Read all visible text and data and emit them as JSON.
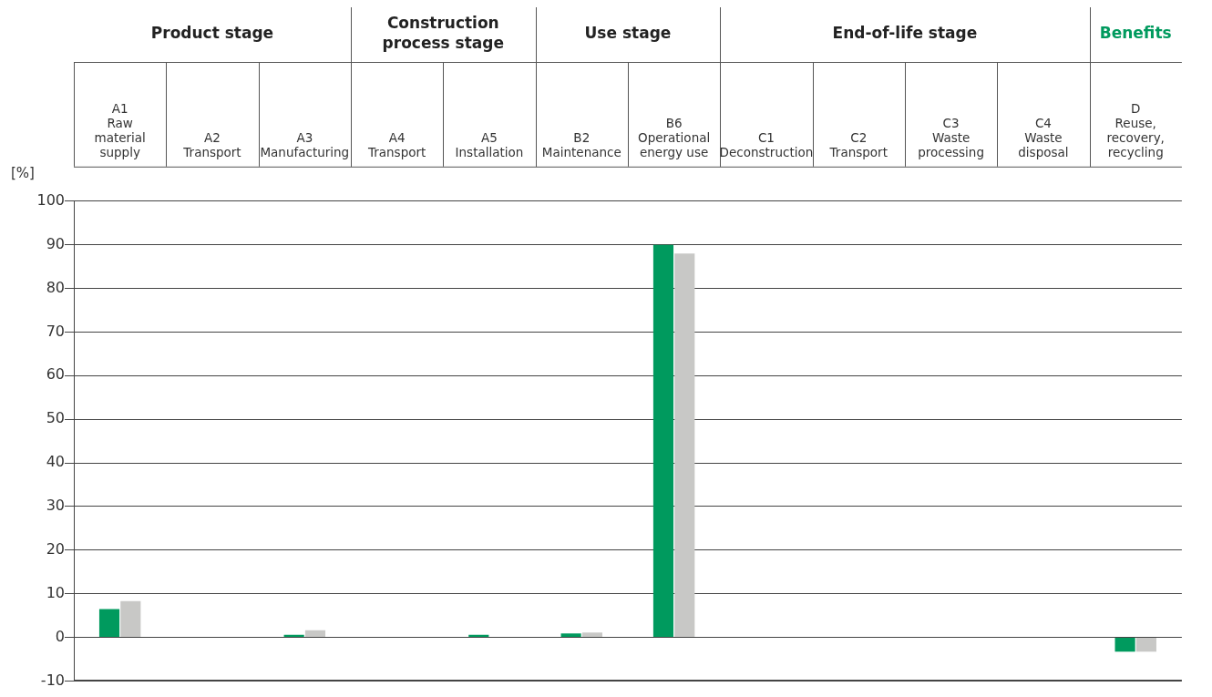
{
  "chart_data": {
    "type": "bar",
    "ylabel": "[%]",
    "categories": [
      "A1\nRaw\nmaterial\nsupply",
      "A2\nTransport",
      "A3\nManufacturing",
      "A4\nTransport",
      "A5\nInstallation",
      "B2\nMaintenance",
      "B6\nOperational\nenergy use",
      "C1\nDeconstruction",
      "C2\nTransport",
      "C3\nWaste\nprocessing",
      "C4\nWaste\ndisposal",
      "D\nReuse,\nrecovery,\nrecycling"
    ],
    "series": [
      {
        "color": "#009a5e",
        "values": [
          6.5,
          0,
          0.6,
          0,
          0.6,
          0.9,
          90,
          0,
          0,
          0,
          0,
          -3.3
        ]
      },
      {
        "color": "#c8c8c6",
        "values": [
          8.3,
          0,
          1.6,
          0,
          0,
          1.1,
          88,
          0,
          0,
          0,
          0,
          -3.3
        ]
      }
    ],
    "annotations": [
      "Product stage",
      "Construction process stage",
      "Use stage",
      "End-of-life stage",
      "Benefits"
    ],
    "ylim": [
      -10,
      100
    ],
    "yticks": [
      -10,
      0,
      10,
      20,
      30,
      40,
      50,
      60,
      70,
      80,
      90,
      100
    ],
    "grid": "y",
    "legend": false
  }
}
